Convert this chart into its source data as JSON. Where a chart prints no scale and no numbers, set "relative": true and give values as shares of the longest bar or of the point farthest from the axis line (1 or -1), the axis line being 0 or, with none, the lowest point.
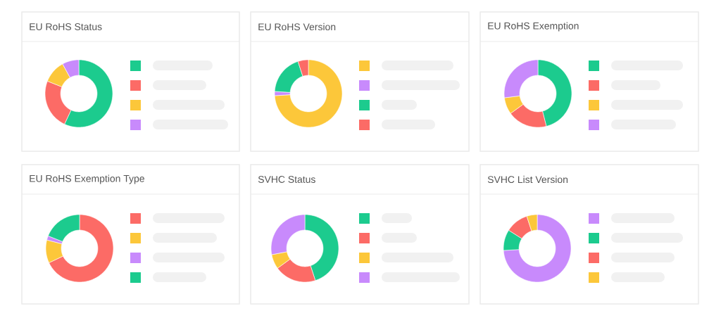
{
  "chart_data": [
    {
      "type": "donut",
      "title": "EU RoHS Status",
      "categories": [
        null,
        null,
        null,
        null
      ],
      "values": [
        57,
        24,
        11,
        8
      ],
      "colors": [
        "#1ccb8e",
        "#fc6b66",
        "#fcc73a",
        "#c88afc"
      ],
      "relative": true
    },
    {
      "type": "donut",
      "title": "EU RoHS Version",
      "categories": [
        null,
        null,
        null,
        null
      ],
      "values": [
        74,
        2,
        19,
        5
      ],
      "colors": [
        "#fcc73a",
        "#c88afc",
        "#1ccb8e",
        "#fc6b66"
      ],
      "relative": true
    },
    {
      "type": "donut",
      "title": "EU RoHS Exemption",
      "categories": [
        null,
        null,
        null,
        null
      ],
      "values": [
        46,
        19,
        8,
        27
      ],
      "colors": [
        "#1ccb8e",
        "#fc6b66",
        "#fcc73a",
        "#c88afc"
      ],
      "relative": true
    },
    {
      "type": "donut",
      "title": "EU RoHS Exemption Type",
      "categories": [
        null,
        null,
        null,
        null
      ],
      "values": [
        68,
        11,
        2,
        19
      ],
      "colors": [
        "#fc6b66",
        "#fcc73a",
        "#c88afc",
        "#1ccb8e"
      ],
      "relative": true
    },
    {
      "type": "donut",
      "title": "SVHC Status",
      "categories": [
        null,
        null,
        null,
        null
      ],
      "values": [
        45,
        20,
        7,
        28
      ],
      "colors": [
        "#1ccb8e",
        "#fc6b66",
        "#fcc73a",
        "#c88afc"
      ],
      "relative": true
    },
    {
      "type": "donut",
      "title": "SVHC List Version",
      "categories": [
        null,
        null,
        null,
        null
      ],
      "values": [
        74,
        10,
        11,
        5
      ],
      "colors": [
        "#c88afc",
        "#1ccb8e",
        "#fc6b66",
        "#fcc73a"
      ],
      "relative": true
    }
  ]
}
